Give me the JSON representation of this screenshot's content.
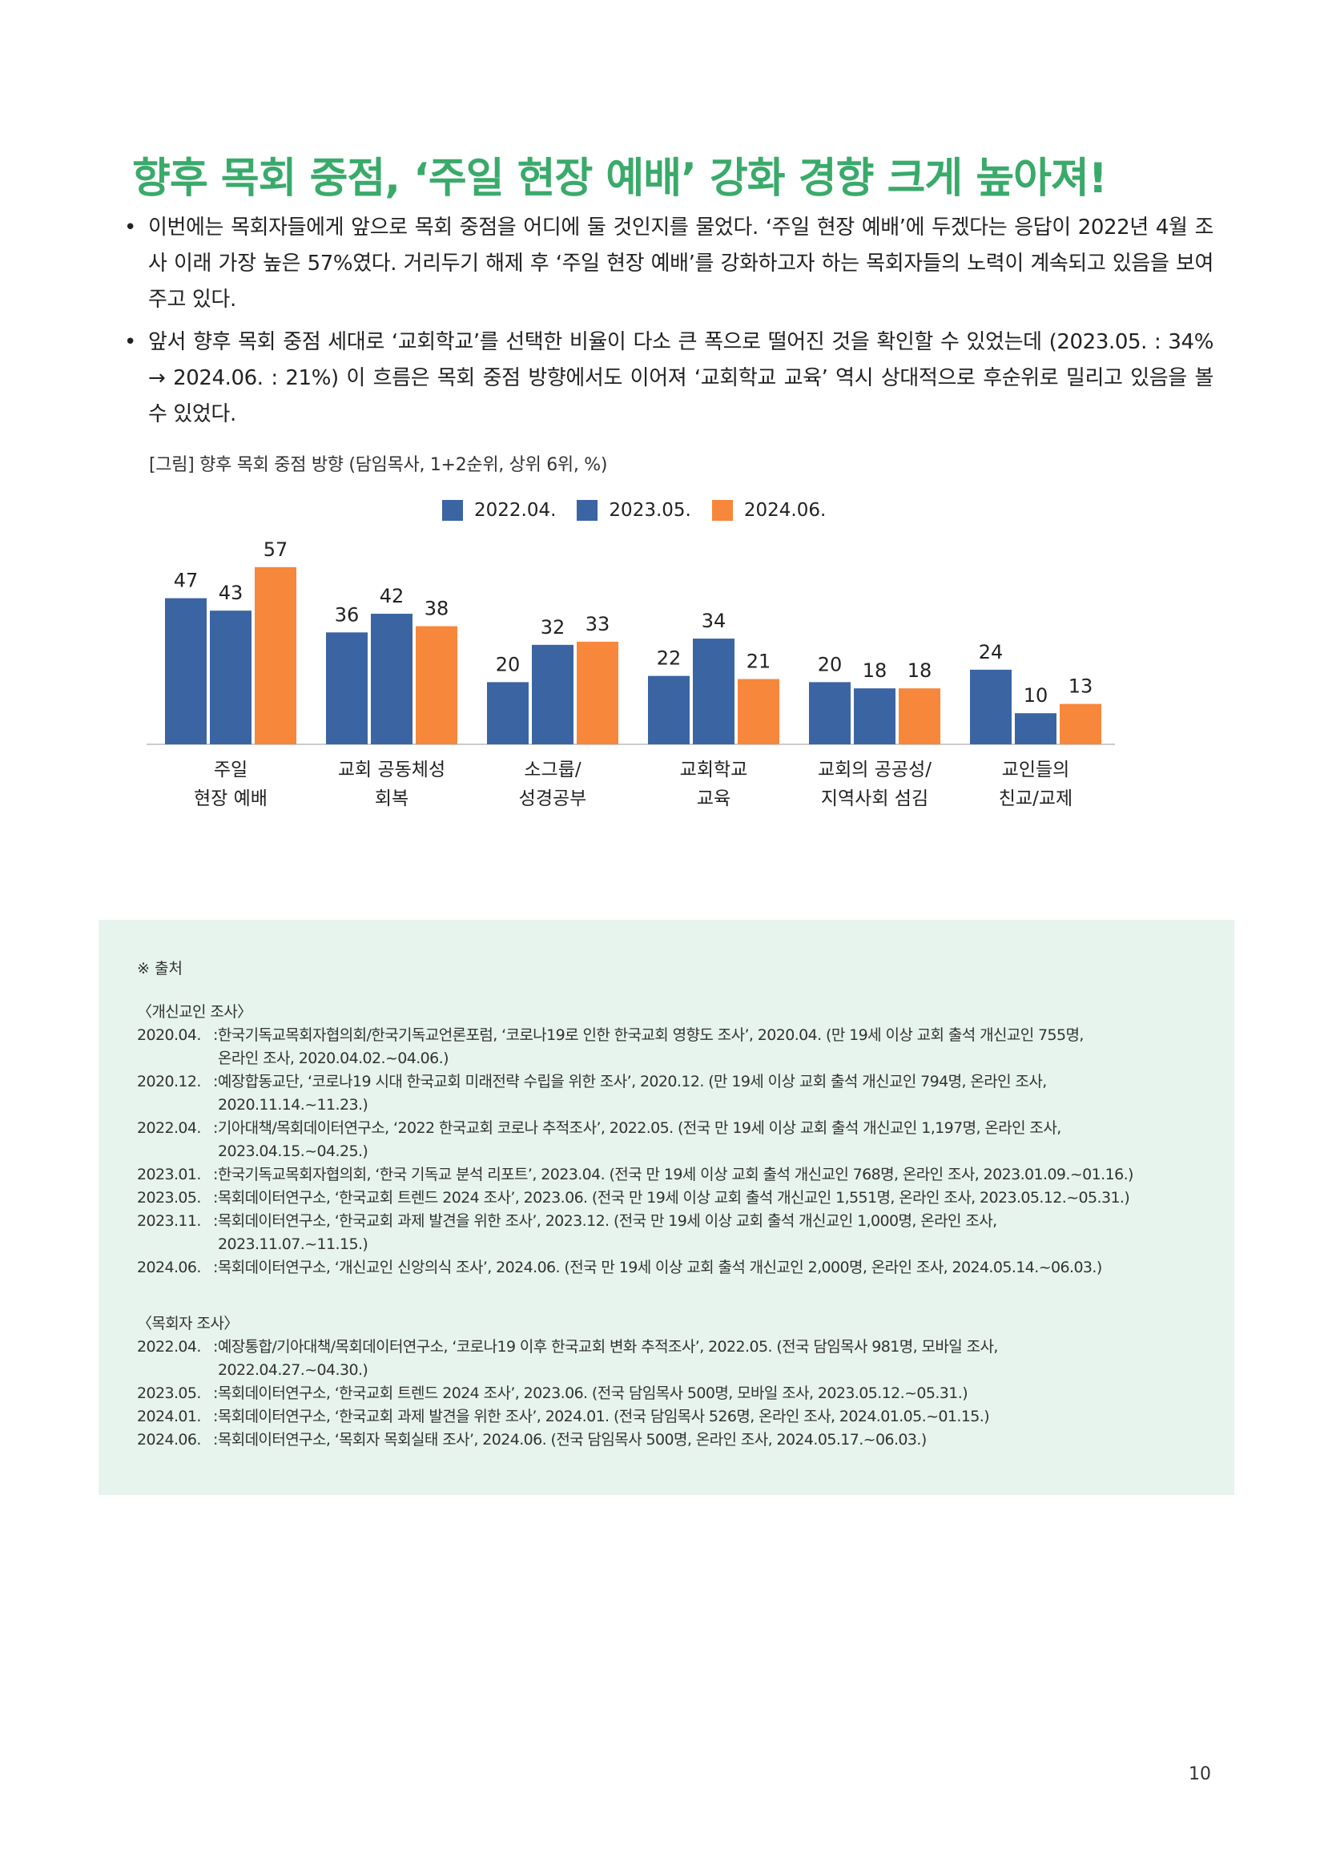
{
  "title": "향후 목회 중점, ‘주일 현장 예배’ 강화 경향 크게 높아져!",
  "bullets": [
    "이번에는 목회자들에게 앞으로 목회 중점을 어디에 둘 것인지를 물었다. ‘주일 현장 예배’에 두겠다는 응답이 2022년 4월 조사 이래 가장 높은 57%였다. 거리두기 해제 후 ‘주일 현장 예배’를 강화하고자 하는 목회자들의 노력이 계속되고 있음을 보여주고 있다.",
    "앞서 향후 목회 중점 세대로 ‘교회학교’를 선택한 비율이 다소 큰 폭으로 떨어진 것을 확인할 수 있었는데 (2023.05. : 34% → 2024.06. : 21%) 이 흐름은 목회 중점 방향에서도 이어져 ‘교회학교 교육’ 역시 상대적으로 후순위로 밀리고 있음을 볼 수 있었다."
  ],
  "figure_caption": "[그림] 향후 목회 중점 방향 (담임목사, 1+2순위, 상위 6위, %)",
  "chart_data": {
    "type": "bar",
    "categories": [
      [
        "주일",
        "현장 예배"
      ],
      [
        "교회 공동체성",
        "회복"
      ],
      [
        "소그룹/",
        "성경공부"
      ],
      [
        "교회학교",
        "교육"
      ],
      [
        "교회의 공공성/",
        "지역사회 섬김"
      ],
      [
        "교인들의",
        "친교/교제"
      ]
    ],
    "series": [
      {
        "name": "2022.04.",
        "values": [
          47,
          36,
          20,
          22,
          20,
          24
        ],
        "color": "#3b64a3"
      },
      {
        "name": "2023.05.",
        "values": [
          43,
          42,
          32,
          34,
          18,
          10
        ],
        "color": "#3b64a3"
      },
      {
        "name": "2024.06.",
        "values": [
          57,
          38,
          33,
          21,
          18,
          13
        ],
        "color": "#f7873b"
      }
    ],
    "ylim": [
      0,
      60
    ],
    "grid": false,
    "legend": "top-center",
    "data_labels": true
  },
  "source": {
    "heading": "※ 출처",
    "sections": [
      {
        "title": "〈개신교인 조사〉",
        "rows": [
          {
            "date": "2020.04.",
            "lines": [
              "한국기독교목회자협의회/한국기독교언론포럼, ‘코로나19로 인한 한국교회 영향도 조사’, 2020.04. (만 19세 이상 교회 출석 개신교인 755명,",
              "온라인 조사, 2020.04.02.~04.06.)"
            ]
          },
          {
            "date": "2020.12.",
            "lines": [
              "예장합동교단, ‘코로나19 시대 한국교회 미래전략 수립을 위한 조사’, 2020.12. (만 19세 이상 교회 출석 개신교인 794명, 온라인 조사,",
              "2020.11.14.~11.23.)"
            ]
          },
          {
            "date": "2022.04.",
            "lines": [
              "기아대책/목회데이터연구소, ‘2022 한국교회 코로나 추적조사’, 2022.05. (전국 만 19세 이상 교회 출석 개신교인 1,197명, 온라인 조사,",
              "2023.04.15.~04.25.)"
            ]
          },
          {
            "date": "2023.01.",
            "lines": [
              "한국기독교목회자협의회, ‘한국 기독교 분석 리포트’, 2023.04. (전국 만 19세 이상 교회 출석 개신교인 768명, 온라인 조사, 2023.01.09.~01.16.)"
            ]
          },
          {
            "date": "2023.05.",
            "lines": [
              "목회데이터연구소, ‘한국교회 트렌드 2024 조사’, 2023.06. (전국 만 19세 이상 교회 출석 개신교인 1,551명, 온라인 조사, 2023.05.12.~05.31.)"
            ]
          },
          {
            "date": "2023.11.",
            "lines": [
              "목회데이터연구소, ‘한국교회 과제 발견을 위한 조사’, 2023.12. (전국 만 19세 이상 교회 출석 개신교인 1,000명, 온라인 조사,",
              "2023.11.07.~11.15.)"
            ]
          },
          {
            "date": "2024.06.",
            "lines": [
              "목회데이터연구소, ‘개신교인 신앙의식 조사’, 2024.06. (전국 만 19세 이상 교회 출석 개신교인 2,000명, 온라인 조사, 2024.05.14.~06.03.)"
            ]
          }
        ]
      },
      {
        "title": "〈목회자 조사〉",
        "rows": [
          {
            "date": "2022.04.",
            "lines": [
              "예장통합/기아대책/목회데이터연구소, ‘코로나19 이후 한국교회 변화 추적조사’, 2022.05. (전국 담임목사 981명, 모바일 조사,",
              "2022.04.27.~04.30.)"
            ]
          },
          {
            "date": "2023.05.",
            "lines": [
              "목회데이터연구소, ‘한국교회 트렌드 2024 조사’, 2023.06. (전국 담임목사 500명, 모바일 조사, 2023.05.12.~05.31.)"
            ]
          },
          {
            "date": "2024.01.",
            "lines": [
              "목회데이터연구소, ‘한국교회 과제 발견을 위한 조사’, 2024.01. (전국 담임목사 526명, 온라인 조사, 2024.01.05.~01.15.)"
            ]
          },
          {
            "date": "2024.06.",
            "lines": [
              "목회데이터연구소, ‘목회자 목회실태 조사’, 2024.06. (전국 담임목사 500명, 온라인 조사, 2024.05.17.~06.03.)"
            ]
          }
        ]
      }
    ]
  },
  "page_number": "10"
}
